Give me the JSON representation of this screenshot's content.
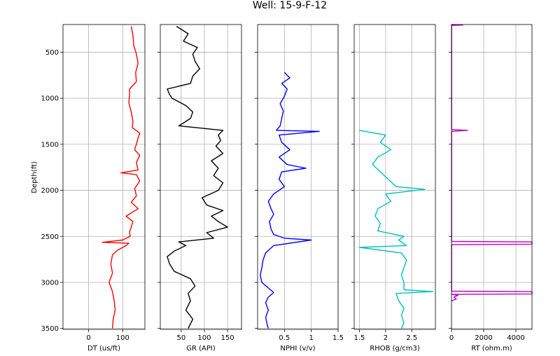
{
  "title": "Well: 15-9-F-12",
  "ylabel": "Depth(ft)",
  "chart_data": {
    "type": "line",
    "title": "Well: 15-9-F-12",
    "ylabel": "Depth(ft)",
    "ylim": [
      3510,
      200
    ],
    "yticks": [
      500,
      1000,
      1500,
      2000,
      2500,
      3000,
      3500
    ],
    "grid": true,
    "tracks": [
      {
        "name": "DT",
        "xlabel": "DT (us/ft)",
        "xlim": [
          -75,
          165
        ],
        "xticks": [
          0,
          100
        ],
        "color": "#ff0000",
        "depth": [
          220,
          320,
          420,
          520,
          620,
          720,
          820,
          900,
          950,
          1050,
          1150,
          1250,
          1320,
          1380,
          1430,
          1500,
          1560,
          1620,
          1700,
          1780,
          1810,
          1830,
          1900,
          1980,
          2060,
          2130,
          2200,
          2280,
          2340,
          2400,
          2450,
          2500,
          2540,
          2565,
          2575,
          2600,
          2650,
          2700,
          2800,
          2900,
          3000,
          3100,
          3200,
          3300,
          3400,
          3500
        ],
        "values": [
          125,
          130,
          132,
          140,
          145,
          138,
          140,
          120,
          120,
          118,
          125,
          130,
          128,
          150,
          145,
          140,
          135,
          150,
          140,
          145,
          95,
          140,
          150,
          135,
          140,
          125,
          145,
          110,
          130,
          125,
          120,
          122,
          100,
          40,
          118,
          110,
          85,
          70,
          65,
          70,
          60,
          70,
          75,
          78,
          72,
          70
        ]
      },
      {
        "name": "GR",
        "xlabel": "GR (API)",
        "xlim": [
          5,
          180
        ],
        "xticks": [
          50,
          100,
          150
        ],
        "color": "#000000",
        "depth": [
          220,
          300,
          380,
          450,
          520,
          600,
          680,
          760,
          840,
          900,
          960,
          1000,
          1080,
          1150,
          1220,
          1300,
          1350,
          1400,
          1460,
          1520,
          1600,
          1680,
          1760,
          1840,
          1920,
          2000,
          2080,
          2160,
          2220,
          2280,
          2340,
          2400,
          2460,
          2520,
          2560,
          2600,
          2660,
          2720,
          2800,
          2880,
          2960,
          3040,
          3120,
          3200,
          3300,
          3400,
          3500
        ],
        "values": [
          40,
          65,
          55,
          85,
          75,
          80,
          90,
          75,
          70,
          20,
          25,
          30,
          60,
          75,
          70,
          45,
          140,
          130,
          135,
          125,
          140,
          115,
          130,
          120,
          140,
          130,
          95,
          105,
          140,
          115,
          130,
          150,
          105,
          120,
          45,
          60,
          35,
          20,
          25,
          35,
          70,
          80,
          65,
          70,
          60,
          75,
          65
        ]
      },
      {
        "name": "NPHI",
        "xlabel": "NPHI (v/v)",
        "xlim": [
          0,
          1.5
        ],
        "xticks": [
          0.5,
          1.0,
          1.5
        ],
        "color": "#0000ff",
        "depth": [
          720,
          780,
          840,
          900,
          980,
          1060,
          1140,
          1220,
          1300,
          1350,
          1360,
          1400,
          1480,
          1560,
          1640,
          1720,
          1760,
          1800,
          1880,
          1960,
          2040,
          2120,
          2200,
          2260,
          2340,
          2420,
          2480,
          2520,
          2540,
          2600,
          2680,
          2760,
          2840,
          2920,
          3000,
          3060,
          3110,
          3160,
          3220,
          3300,
          3380,
          3460,
          3500
        ],
        "values": [
          0.5,
          0.6,
          0.45,
          0.55,
          0.5,
          0.42,
          0.48,
          0.45,
          0.42,
          0.35,
          1.15,
          0.4,
          0.45,
          0.6,
          0.4,
          0.55,
          0.9,
          0.45,
          0.4,
          0.5,
          0.3,
          0.2,
          0.25,
          0.3,
          0.22,
          0.25,
          0.3,
          0.5,
          1.0,
          0.3,
          0.15,
          0.1,
          0.08,
          0.05,
          0.08,
          0.2,
          0.3,
          0.2,
          0.15,
          0.2,
          0.15,
          0.18,
          0.2
        ]
      },
      {
        "name": "RHOB",
        "xlabel": "RHOB (g/cm3)",
        "xlim": [
          1.4,
          2.95
        ],
        "xticks": [
          1.5,
          2.0,
          2.5
        ],
        "color": "#00c0c0",
        "depth": [
          1350,
          1400,
          1480,
          1560,
          1640,
          1720,
          1800,
          1880,
          1960,
          1990,
          2040,
          2120,
          2200,
          2280,
          2360,
          2440,
          2500,
          2540,
          2600,
          2620,
          2680,
          2760,
          2840,
          2920,
          3000,
          3080,
          3100,
          3120,
          3200,
          3280,
          3360,
          3440,
          3500
        ],
        "values": [
          1.5,
          2.0,
          1.9,
          2.1,
          1.85,
          1.75,
          1.9,
          2.05,
          2.2,
          2.75,
          2.0,
          2.1,
          1.85,
          1.8,
          1.9,
          1.85,
          2.35,
          2.25,
          2.4,
          1.5,
          2.3,
          2.4,
          2.35,
          2.3,
          2.35,
          2.35,
          2.9,
          2.2,
          2.25,
          2.35,
          2.3,
          2.35,
          2.3
        ]
      },
      {
        "name": "RT",
        "xlabel": "RT (ohm.m)",
        "xlim": [
          0,
          5000
        ],
        "xticks": [
          0,
          2000,
          4000
        ],
        "color": "#c000c0",
        "depth": [
          200,
          205,
          210,
          220,
          900,
          1340,
          1350,
          1360,
          1370,
          2000,
          2555,
          2560,
          2565,
          2570,
          2575,
          2580,
          2585,
          2590,
          2800,
          3095,
          3100,
          3105,
          3110,
          3115,
          3120,
          3125,
          3130,
          3140,
          3160,
          3180,
          3200
        ],
        "values": [
          10,
          700,
          10,
          10,
          10,
          10,
          1000,
          10,
          10,
          10,
          10,
          5000,
          5000,
          5000,
          5000,
          5000,
          5000,
          10,
          10,
          10,
          5000,
          5000,
          5000,
          5000,
          5000,
          5000,
          10,
          400,
          150,
          300,
          20
        ]
      }
    ]
  }
}
